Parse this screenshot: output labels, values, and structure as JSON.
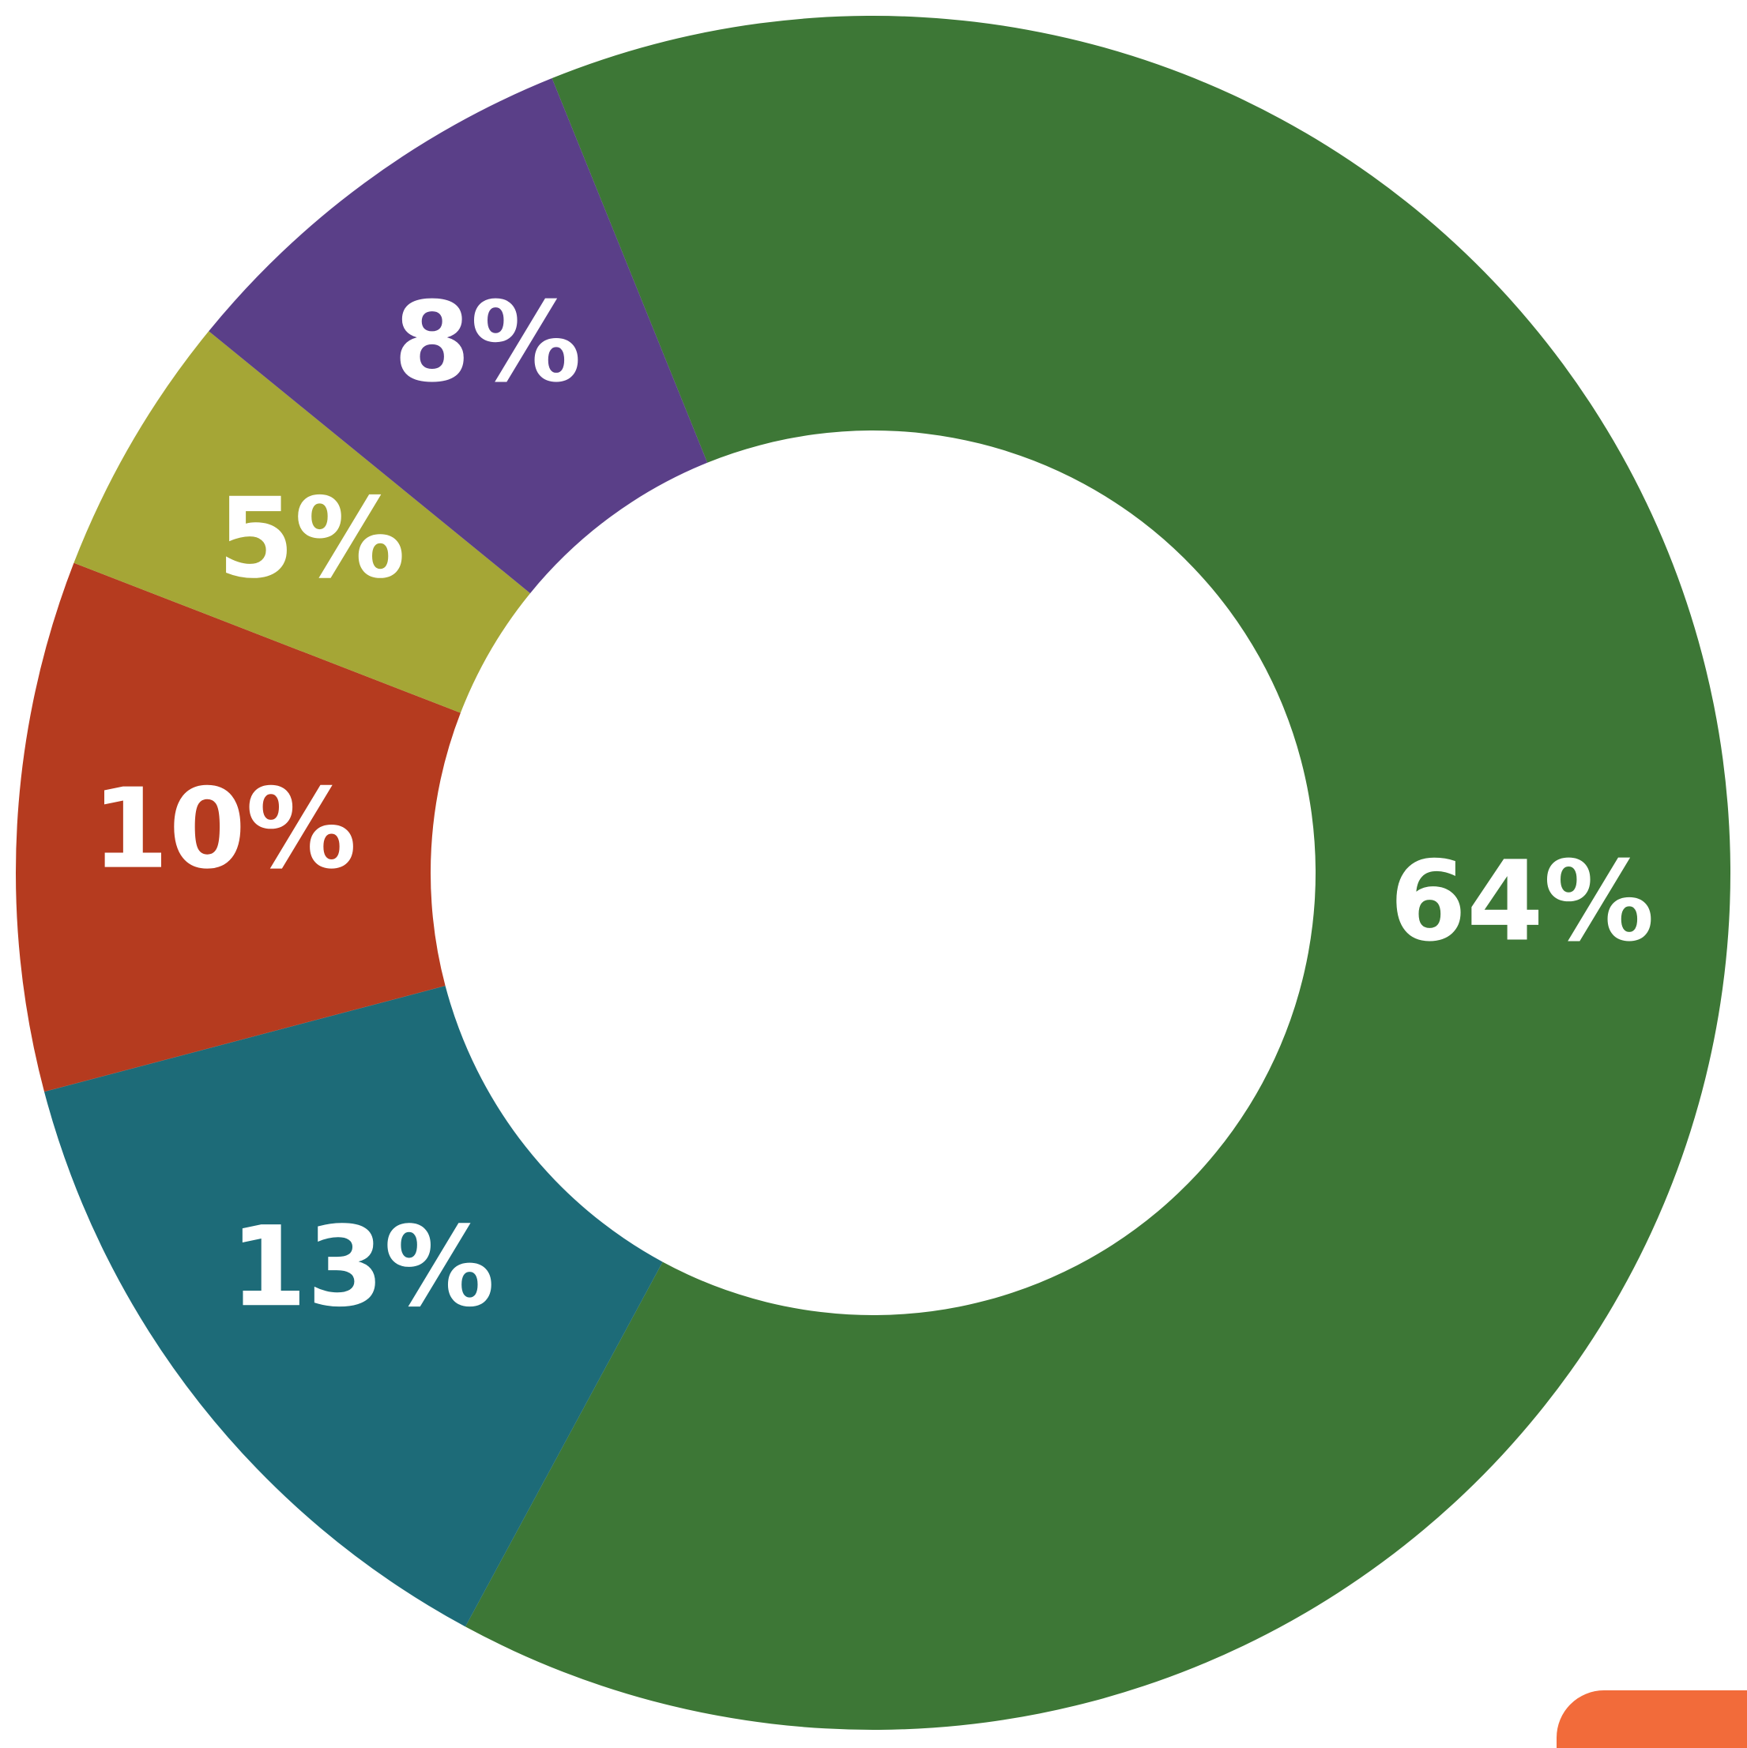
{
  "chart_data": {
    "type": "donut",
    "values": [
      64,
      13,
      10,
      5,
      8
    ],
    "value_labels": [
      "64%",
      "13%",
      "10%",
      "5%",
      "8%"
    ],
    "colors": [
      "#3d7736",
      "#1d6b78",
      "#b53b1f",
      "#a5a636",
      "#5a3f88"
    ]
  }
}
